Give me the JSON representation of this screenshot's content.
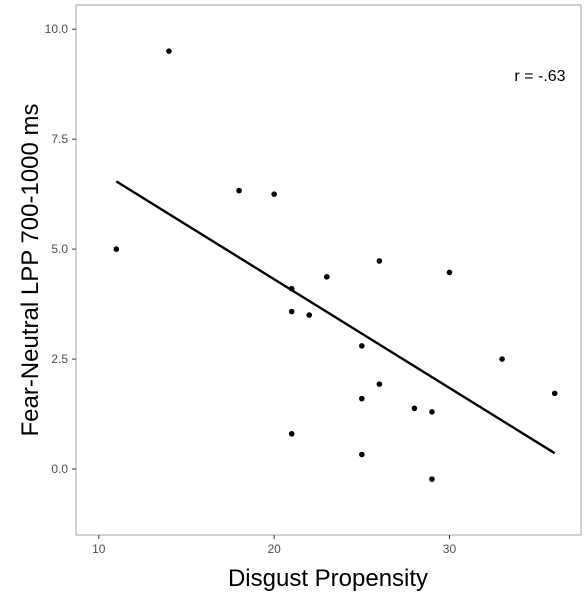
{
  "chart_data": {
    "type": "scatter",
    "xlabel": "Disgust Propensity",
    "ylabel": "Fear-Neutral LPP 700-1000 ms",
    "xlim": [
      8.7,
      37.5
    ],
    "ylim": [
      -1.5,
      10.55
    ],
    "xticks": [
      10,
      20,
      30
    ],
    "yticks": [
      0.0,
      2.5,
      5.0,
      7.5,
      10.0
    ],
    "xtick_labels": [
      "10",
      "20",
      "30"
    ],
    "ytick_labels": [
      "0.0",
      "2.5",
      "5.0",
      "7.5",
      "10.0"
    ],
    "grid": false,
    "points": [
      {
        "x": 11,
        "y": 5.0
      },
      {
        "x": 14,
        "y": 9.5
      },
      {
        "x": 18,
        "y": 6.33
      },
      {
        "x": 20,
        "y": 6.25
      },
      {
        "x": 21,
        "y": 4.1
      },
      {
        "x": 21,
        "y": 3.58
      },
      {
        "x": 21,
        "y": 0.8
      },
      {
        "x": 22,
        "y": 3.5
      },
      {
        "x": 23,
        "y": 4.37
      },
      {
        "x": 25,
        "y": 2.8
      },
      {
        "x": 25,
        "y": 1.6
      },
      {
        "x": 25,
        "y": 0.33
      },
      {
        "x": 26,
        "y": 4.73
      },
      {
        "x": 26,
        "y": 1.93
      },
      {
        "x": 28,
        "y": 1.38
      },
      {
        "x": 29,
        "y": 1.3
      },
      {
        "x": 29,
        "y": -0.23
      },
      {
        "x": 30,
        "y": 4.47
      },
      {
        "x": 33,
        "y": 2.5
      },
      {
        "x": 36,
        "y": 1.72
      }
    ],
    "fit_line": {
      "x1": 11,
      "y1": 6.54,
      "x2": 36,
      "y2": 0.36
    },
    "annotation": "r = -.63",
    "colors": {
      "points": "#000000",
      "line": "#000000",
      "panel_border": "#a6a6a6",
      "tick_text": "#4d4d4d"
    }
  }
}
